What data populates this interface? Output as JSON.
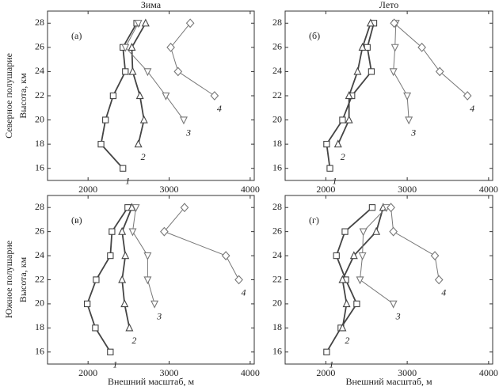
{
  "rows": [
    "Северное полушарие",
    "Южное полушарие"
  ],
  "chart_data": [
    {
      "type": "line",
      "title": "Зима",
      "panel_label": "(а)",
      "y_label": "Высота, км",
      "xlim": [
        1500,
        4050
      ],
      "ylim": [
        15,
        29
      ],
      "xticks": [
        2000,
        3000,
        4000
      ],
      "yticks": [
        16,
        18,
        20,
        22,
        24,
        26,
        28
      ],
      "series": [
        {
          "name": "1",
          "marker": "square",
          "color": "#444",
          "x": [
            2430,
            2160,
            2215,
            2310,
            2460,
            2430,
            2600
          ],
          "values": [
            16,
            18,
            20,
            22,
            24,
            26,
            28
          ]
        },
        {
          "name": "2",
          "marker": "triangle-up",
          "color": "#444",
          "x": [
            2620,
            2690,
            2640,
            2550,
            2540,
            2710
          ],
          "values": [
            18,
            20,
            22,
            24,
            26,
            28
          ]
        },
        {
          "name": "3",
          "marker": "triangle-down",
          "color": "#777",
          "x": [
            3180,
            2960,
            2735,
            2460,
            2620
          ],
          "values": [
            20,
            22,
            24,
            26,
            28
          ]
        },
        {
          "name": "4",
          "marker": "diamond",
          "color": "#777",
          "x": [
            3560,
            3110,
            3020,
            3260
          ],
          "values": [
            22,
            24,
            26,
            28
          ]
        }
      ]
    },
    {
      "type": "line",
      "title": "Лето",
      "panel_label": "(б)",
      "xlim": [
        1500,
        4050
      ],
      "ylim": [
        15,
        29
      ],
      "xticks": [
        2000,
        3000,
        4000
      ],
      "yticks": [
        16,
        18,
        20,
        22,
        24,
        26,
        28
      ],
      "series": [
        {
          "name": "1",
          "marker": "square",
          "color": "#444",
          "x": [
            2050,
            2010,
            2205,
            2320,
            2560,
            2510,
            2590
          ],
          "values": [
            16,
            18,
            20,
            22,
            24,
            26,
            28
          ]
        },
        {
          "name": "2",
          "marker": "triangle-up",
          "color": "#444",
          "x": [
            2150,
            2285,
            2285,
            2390,
            2450,
            2550
          ],
          "values": [
            18,
            20,
            22,
            24,
            26,
            28
          ]
        },
        {
          "name": "3",
          "marker": "triangle-down",
          "color": "#777",
          "x": [
            3020,
            3000,
            2830,
            2850,
            2860
          ],
          "values": [
            20,
            22,
            24,
            26,
            28
          ]
        },
        {
          "name": "4",
          "marker": "diamond",
          "color": "#777",
          "x": [
            3740,
            3400,
            3180,
            2840
          ],
          "values": [
            22,
            24,
            26,
            28
          ]
        }
      ]
    },
    {
      "type": "line",
      "panel_label": "(в)",
      "y_label": "Высота, км",
      "x_label": "Внешний масштаб, м",
      "xlim": [
        1500,
        4050
      ],
      "ylim": [
        15,
        29
      ],
      "xticks": [
        2000,
        3000,
        4000
      ],
      "yticks": [
        16,
        18,
        20,
        22,
        24,
        26,
        28
      ],
      "series": [
        {
          "name": "1",
          "marker": "square",
          "color": "#444",
          "x": [
            2275,
            2090,
            1990,
            2100,
            2275,
            2295,
            2490
          ],
          "values": [
            16,
            18,
            20,
            22,
            24,
            26,
            28
          ]
        },
        {
          "name": "2",
          "marker": "triangle-up",
          "color": "#444",
          "x": [
            2510,
            2450,
            2420,
            2460,
            2420,
            2540
          ],
          "values": [
            18,
            20,
            22,
            24,
            26,
            28
          ]
        },
        {
          "name": "3",
          "marker": "triangle-down",
          "color": "#777",
          "x": [
            2820,
            2735,
            2735,
            2550,
            2590
          ],
          "values": [
            20,
            22,
            24,
            26,
            28
          ]
        },
        {
          "name": "4",
          "marker": "diamond",
          "color": "#777",
          "x": [
            3860,
            3700,
            2940,
            3190
          ],
          "values": [
            22,
            24,
            26,
            28
          ]
        }
      ]
    },
    {
      "type": "line",
      "panel_label": "(г)",
      "x_label": "Внешний масштаб, м",
      "xlim": [
        1500,
        4050
      ],
      "ylim": [
        15,
        29
      ],
      "xticks": [
        2000,
        3000,
        4000
      ],
      "yticks": [
        16,
        18,
        20,
        22,
        24,
        26,
        28
      ],
      "series": [
        {
          "name": "1",
          "marker": "square",
          "color": "#444",
          "x": [
            2010,
            2185,
            2380,
            2245,
            2130,
            2235,
            2570
          ],
          "values": [
            16,
            18,
            20,
            22,
            24,
            26,
            28
          ]
        },
        {
          "name": "2",
          "marker": "triangle-up",
          "color": "#444",
          "x": [
            2205,
            2255,
            2205,
            2345,
            2620,
            2705
          ],
          "values": [
            18,
            20,
            22,
            24,
            26,
            28
          ]
        },
        {
          "name": "3",
          "marker": "triangle-down",
          "color": "#777",
          "x": [
            2830,
            2420,
            2450,
            2460,
            2745
          ],
          "values": [
            20,
            22,
            24,
            26,
            28
          ]
        },
        {
          "name": "4",
          "marker": "diamond",
          "color": "#777",
          "x": [
            3390,
            3340,
            2830,
            2800
          ],
          "values": [
            22,
            24,
            26,
            28
          ]
        }
      ]
    }
  ]
}
